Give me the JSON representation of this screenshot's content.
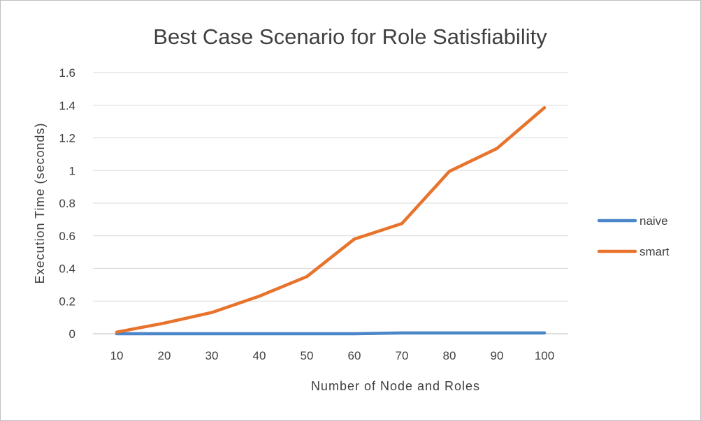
{
  "chart_data": {
    "type": "line",
    "title": "Best Case Scenario for Role Satisfiability",
    "xlabel": "Number  of Node and Roles",
    "ylabel": "Execution Time (seconds)",
    "categories": [
      "10",
      "20",
      "30",
      "40",
      "50",
      "60",
      "70",
      "80",
      "90",
      "100"
    ],
    "ylim": [
      0,
      1.6
    ],
    "yticks": [
      "0",
      "0.2",
      "0.4",
      "0.6",
      "0.8",
      "1",
      "1.2",
      "1.4",
      "1.6"
    ],
    "grid": true,
    "legend": "right",
    "series": [
      {
        "name": "naive",
        "color": "#4a86c8",
        "values": [
          0,
          0,
          0,
          0,
          0,
          0,
          0.005,
          0.005,
          0.005,
          0.005
        ]
      },
      {
        "name": "smart",
        "color": "#e8732c",
        "values": [
          0.01,
          0.065,
          0.13,
          0.23,
          0.35,
          0.58,
          0.675,
          0.995,
          1.135,
          1.385
        ]
      }
    ]
  }
}
